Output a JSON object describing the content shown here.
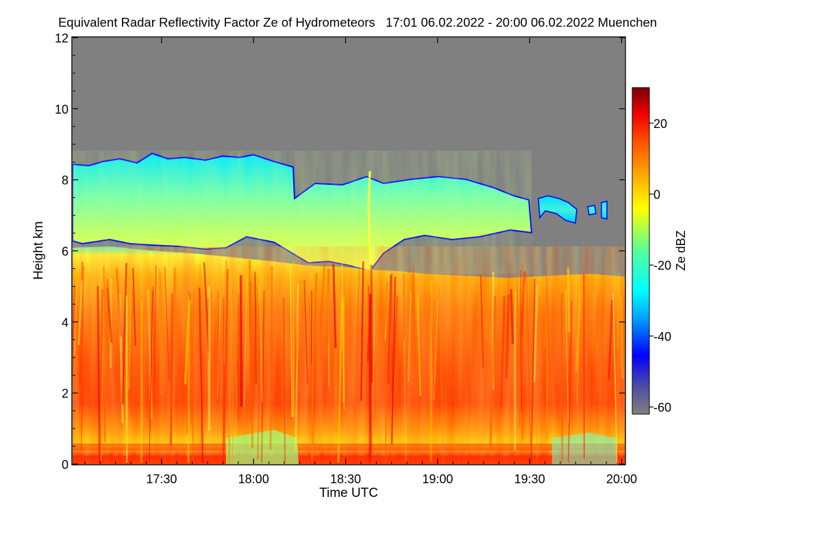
{
  "chart_data": {
    "type": "heatmap",
    "title": "Equivalent Radar Reflectivity Factor Ze of Hydrometeors   17:01 06.02.2022 - 20:00 06.02.2022 Muenchen",
    "xlabel": "Time UTC",
    "ylabel": "Height km",
    "x_range": [
      "17:01",
      "20:01"
    ],
    "y_range": [
      0,
      12
    ],
    "x_ticks": [
      "17:30",
      "18:00",
      "18:30",
      "19:00",
      "19:30",
      "20:00"
    ],
    "x_tick_minutes": [
      29,
      59,
      89,
      119,
      149,
      179
    ],
    "y_ticks": [
      0,
      2,
      4,
      6,
      8,
      10,
      12
    ],
    "colorbar": {
      "label": "Ze dBZ",
      "range": [
        -62,
        30
      ],
      "ticks": [
        20,
        0,
        -20,
        -40,
        -60
      ]
    },
    "colors": {
      "background_no_signal": "#808080",
      "colormap": [
        "#000080",
        "#0000ff",
        "#00aaff",
        "#00ffff",
        "#55ff99",
        "#ffff00",
        "#ffaa00",
        "#ff6000",
        "#ff0000",
        "#8b0000"
      ]
    },
    "features": {
      "cloud_top_km_start": 8.4,
      "cloud_top_km_end": 5.2,
      "upper_layer": {
        "from_minute": 0,
        "to_minute": 150,
        "top_km": 8.3,
        "base_km": 6.2
      },
      "precipitation_region": {
        "top_km": 5.8,
        "max_ze_dbz": 25,
        "core_height_km": [
          1.5,
          3.5
        ]
      }
    }
  }
}
